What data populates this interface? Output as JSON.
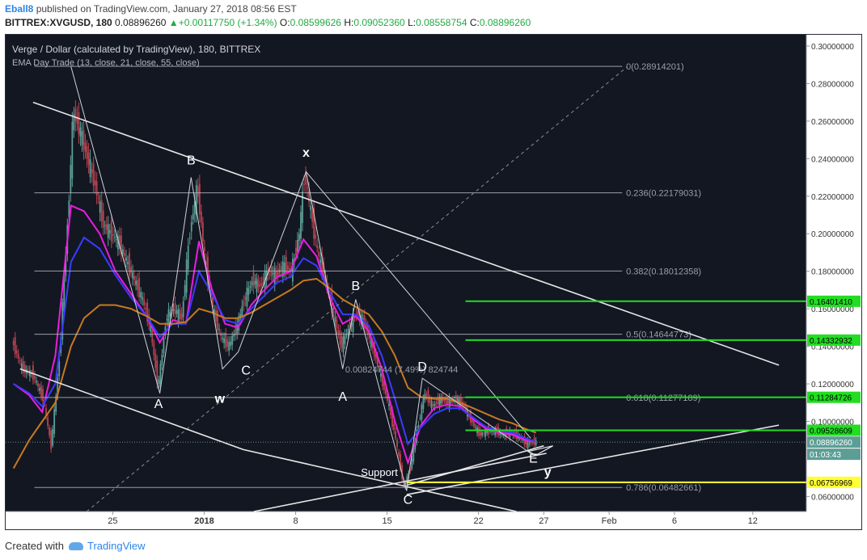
{
  "header": {
    "user": "Eball8",
    "published_text": " published on TradingView.com, January 27, 2018 08:56 EST",
    "symbol": "BITTREX:XVGUSD, 180",
    "last": "0.08896260",
    "change": "+0.00117750 (+1.34%)",
    "ohlc": {
      "o_label": "O:",
      "o": "0.08599626",
      "h_label": "H:",
      "h": "0.09052360",
      "l_label": "L:",
      "l": "0.08558754",
      "c_label": "C:",
      "c": "0.08896260"
    }
  },
  "footer": {
    "created_with": "Created with",
    "brand": "TradingView"
  },
  "colors": {
    "background": "#131722",
    "ema13": "#e91ee0",
    "ema21": "#3b3bff",
    "ema55": "#c8791f",
    "fib": "#b2b5be",
    "level": "#22dd22",
    "support": "#ffff33",
    "candle_up": "#5c9e95",
    "candle_down": "#b8434f",
    "drawing": "#e6e6e6"
  },
  "chart_data": {
    "type": "candlestick",
    "title": "Verge / Dollar (calculated by TradingView), 180, BITTREX",
    "indicator": "EMA Day Trade (13, close, 21, close, 55, close)",
    "timeframe": "180",
    "ylim": [
      0.052,
      0.306
    ],
    "y_ticks": [
      "0.30000000",
      "0.28000000",
      "0.26000000",
      "0.24000000",
      "0.22000000",
      "0.20000000",
      "0.18000000",
      "0.16000000",
      "0.14000000",
      "0.12000000",
      "0.10000000",
      "0.06000000"
    ],
    "x_ticks": [
      {
        "label": "25",
        "day": 25
      },
      {
        "label": "2018",
        "day": 32
      },
      {
        "label": "8",
        "day": 39
      },
      {
        "label": "15",
        "day": 46
      },
      {
        "label": "22",
        "day": 53
      },
      {
        "label": "27",
        "day": 58
      },
      {
        "label": "Feb",
        "day": 63
      },
      {
        "label": "6",
        "day": 68
      },
      {
        "label": "12",
        "day": 74
      }
    ],
    "price_path": [
      [
        17.4,
        0.143
      ],
      [
        18.2,
        0.128
      ],
      [
        19.0,
        0.125
      ],
      [
        19.8,
        0.112
      ],
      [
        20.4,
        0.087
      ],
      [
        21.0,
        0.13
      ],
      [
        21.7,
        0.21
      ],
      [
        22.1,
        0.265
      ],
      [
        22.6,
        0.255
      ],
      [
        23.2,
        0.24
      ],
      [
        23.8,
        0.225
      ],
      [
        24.4,
        0.205
      ],
      [
        25.0,
        0.2
      ],
      [
        25.6,
        0.195
      ],
      [
        26.2,
        0.185
      ],
      [
        26.8,
        0.175
      ],
      [
        27.4,
        0.165
      ],
      [
        28.0,
        0.15
      ],
      [
        28.6,
        0.118
      ],
      [
        29.2,
        0.155
      ],
      [
        29.8,
        0.16
      ],
      [
        30.4,
        0.155
      ],
      [
        31.0,
        0.2
      ],
      [
        31.6,
        0.225
      ],
      [
        32.2,
        0.185
      ],
      [
        32.8,
        0.16
      ],
      [
        33.4,
        0.145
      ],
      [
        34.0,
        0.14
      ],
      [
        34.6,
        0.15
      ],
      [
        35.2,
        0.165
      ],
      [
        35.8,
        0.175
      ],
      [
        36.4,
        0.172
      ],
      [
        37.0,
        0.18
      ],
      [
        37.6,
        0.178
      ],
      [
        38.2,
        0.183
      ],
      [
        38.8,
        0.18
      ],
      [
        39.4,
        0.2
      ],
      [
        39.8,
        0.232
      ],
      [
        40.2,
        0.215
      ],
      [
        40.8,
        0.19
      ],
      [
        41.4,
        0.175
      ],
      [
        42.0,
        0.158
      ],
      [
        42.6,
        0.14
      ],
      [
        43.2,
        0.15
      ],
      [
        43.8,
        0.158
      ],
      [
        44.4,
        0.152
      ],
      [
        45.0,
        0.14
      ],
      [
        45.6,
        0.125
      ],
      [
        46.2,
        0.11
      ],
      [
        46.8,
        0.09
      ],
      [
        47.4,
        0.065
      ],
      [
        47.9,
        0.075
      ],
      [
        48.4,
        0.095
      ],
      [
        49.0,
        0.115
      ],
      [
        49.6,
        0.108
      ],
      [
        50.2,
        0.112
      ],
      [
        50.8,
        0.11
      ],
      [
        51.4,
        0.112
      ],
      [
        52.0,
        0.108
      ],
      [
        52.6,
        0.1
      ],
      [
        53.2,
        0.093
      ],
      [
        53.8,
        0.095
      ],
      [
        54.4,
        0.095
      ],
      [
        55.0,
        0.093
      ],
      [
        55.6,
        0.094
      ],
      [
        56.2,
        0.092
      ],
      [
        56.8,
        0.088
      ],
      [
        57.4,
        0.089
      ]
    ],
    "ema": [
      {
        "name": "EMA 13",
        "color_key": "ema13",
        "points": [
          [
            17.4,
            0.12
          ],
          [
            18.6,
            0.114
          ],
          [
            19.6,
            0.105
          ],
          [
            20.6,
            0.135
          ],
          [
            21.8,
            0.215
          ],
          [
            22.8,
            0.212
          ],
          [
            24.0,
            0.2
          ],
          [
            25.2,
            0.18
          ],
          [
            26.4,
            0.168
          ],
          [
            27.6,
            0.156
          ],
          [
            28.6,
            0.142
          ],
          [
            29.6,
            0.154
          ],
          [
            30.6,
            0.152
          ],
          [
            31.6,
            0.196
          ],
          [
            32.6,
            0.17
          ],
          [
            33.6,
            0.152
          ],
          [
            34.6,
            0.15
          ],
          [
            35.6,
            0.162
          ],
          [
            36.6,
            0.17
          ],
          [
            37.6,
            0.177
          ],
          [
            38.6,
            0.18
          ],
          [
            39.6,
            0.197
          ],
          [
            40.6,
            0.188
          ],
          [
            41.6,
            0.166
          ],
          [
            42.6,
            0.152
          ],
          [
            43.6,
            0.156
          ],
          [
            44.6,
            0.148
          ],
          [
            45.6,
            0.128
          ],
          [
            46.6,
            0.1
          ],
          [
            47.6,
            0.078
          ],
          [
            48.6,
            0.098
          ],
          [
            49.6,
            0.107
          ],
          [
            50.6,
            0.109
          ],
          [
            51.6,
            0.108
          ],
          [
            52.6,
            0.101
          ],
          [
            53.6,
            0.096
          ],
          [
            54.6,
            0.094
          ],
          [
            55.6,
            0.093
          ],
          [
            56.6,
            0.09
          ],
          [
            57.4,
            0.089
          ]
        ]
      },
      {
        "name": "EMA 21",
        "color_key": "ema21",
        "points": [
          [
            17.4,
            0.12
          ],
          [
            18.6,
            0.115
          ],
          [
            19.6,
            0.108
          ],
          [
            20.6,
            0.12
          ],
          [
            21.8,
            0.185
          ],
          [
            22.8,
            0.198
          ],
          [
            24.0,
            0.192
          ],
          [
            25.2,
            0.178
          ],
          [
            26.4,
            0.166
          ],
          [
            27.6,
            0.156
          ],
          [
            28.6,
            0.145
          ],
          [
            29.6,
            0.152
          ],
          [
            30.6,
            0.152
          ],
          [
            31.6,
            0.18
          ],
          [
            32.6,
            0.168
          ],
          [
            33.6,
            0.154
          ],
          [
            34.6,
            0.152
          ],
          [
            35.6,
            0.16
          ],
          [
            36.6,
            0.167
          ],
          [
            37.6,
            0.174
          ],
          [
            38.6,
            0.177
          ],
          [
            39.6,
            0.187
          ],
          [
            40.6,
            0.183
          ],
          [
            41.6,
            0.169
          ],
          [
            42.6,
            0.157
          ],
          [
            43.6,
            0.157
          ],
          [
            44.6,
            0.151
          ],
          [
            45.6,
            0.135
          ],
          [
            46.6,
            0.112
          ],
          [
            47.6,
            0.088
          ],
          [
            48.6,
            0.097
          ],
          [
            49.6,
            0.104
          ],
          [
            50.6,
            0.107
          ],
          [
            51.6,
            0.107
          ],
          [
            52.6,
            0.102
          ],
          [
            53.6,
            0.097
          ],
          [
            54.6,
            0.095
          ],
          [
            55.6,
            0.094
          ],
          [
            56.6,
            0.091
          ],
          [
            57.4,
            0.089
          ]
        ]
      },
      {
        "name": "EMA 55",
        "color_key": "ema55",
        "points": [
          [
            17.4,
            0.075
          ],
          [
            18.6,
            0.09
          ],
          [
            19.6,
            0.1
          ],
          [
            20.6,
            0.11
          ],
          [
            21.8,
            0.14
          ],
          [
            22.8,
            0.155
          ],
          [
            24.0,
            0.162
          ],
          [
            25.2,
            0.162
          ],
          [
            26.4,
            0.16
          ],
          [
            27.6,
            0.156
          ],
          [
            28.6,
            0.152
          ],
          [
            29.6,
            0.152
          ],
          [
            30.6,
            0.153
          ],
          [
            31.6,
            0.16
          ],
          [
            32.6,
            0.158
          ],
          [
            33.6,
            0.155
          ],
          [
            34.6,
            0.155
          ],
          [
            35.6,
            0.158
          ],
          [
            36.6,
            0.162
          ],
          [
            37.6,
            0.166
          ],
          [
            38.6,
            0.17
          ],
          [
            39.6,
            0.175
          ],
          [
            40.6,
            0.176
          ],
          [
            41.6,
            0.171
          ],
          [
            42.6,
            0.165
          ],
          [
            43.6,
            0.161
          ],
          [
            44.6,
            0.157
          ],
          [
            45.6,
            0.148
          ],
          [
            46.6,
            0.135
          ],
          [
            47.6,
            0.118
          ],
          [
            48.6,
            0.113
          ],
          [
            49.6,
            0.112
          ],
          [
            50.6,
            0.112
          ],
          [
            51.6,
            0.11
          ],
          [
            52.6,
            0.107
          ],
          [
            53.6,
            0.104
          ],
          [
            54.6,
            0.101
          ],
          [
            55.6,
            0.099
          ],
          [
            56.6,
            0.096
          ],
          [
            57.4,
            0.094
          ]
        ]
      }
    ],
    "fib_levels": [
      {
        "label": "0(0.28914201)",
        "value": 0.28914201
      },
      {
        "label": "0.236(0.22179031)",
        "value": 0.22179031
      },
      {
        "label": "0.382(0.18012358)",
        "value": 0.18012358
      },
      {
        "label": "0.5(0.14644773)",
        "value": 0.14644773
      },
      {
        "label": "0.618(0.11277189)",
        "value": 0.11277189
      },
      {
        "label": "0.786(0.06482661)",
        "value": 0.06482661
      }
    ],
    "horizontal_levels": [
      {
        "label": "0.16401410",
        "value": 0.1640141,
        "color_key": "level"
      },
      {
        "label": "0.14332932",
        "value": 0.14332932,
        "color_key": "level"
      },
      {
        "label": "0.11284726",
        "value": 0.11284726,
        "color_key": "level"
      },
      {
        "label": "0.09528609",
        "value": 0.09528609,
        "color_key": "level"
      },
      {
        "label": "0.06756969",
        "value": 0.06756969,
        "color_key": "support"
      }
    ],
    "current_price": {
      "label": "0.08896260",
      "value": 0.0889626,
      "countdown": "01:03:43"
    },
    "measure_label": "0.00824744 (7.49%) 824744",
    "wave_labels": [
      {
        "text": "B",
        "day": 31.0,
        "price": 0.237,
        "bold": false
      },
      {
        "text": "x",
        "day": 39.8,
        "price": 0.241,
        "bold": true
      },
      {
        "text": "A",
        "day": 28.5,
        "price": 0.107,
        "bold": false
      },
      {
        "text": "w",
        "day": 33.2,
        "price": 0.11,
        "bold": true
      },
      {
        "text": "C",
        "day": 35.2,
        "price": 0.125,
        "bold": false
      },
      {
        "text": "B",
        "day": 43.6,
        "price": 0.17,
        "bold": false
      },
      {
        "text": "A",
        "day": 42.6,
        "price": 0.111,
        "bold": false
      },
      {
        "text": "D",
        "day": 48.7,
        "price": 0.127,
        "bold": false
      },
      {
        "text": "C",
        "day": 47.6,
        "price": 0.056,
        "bold": false
      },
      {
        "text": "E",
        "day": 57.2,
        "price": 0.078,
        "bold": false
      },
      {
        "text": "y",
        "day": 58.3,
        "price": 0.071,
        "bold": true
      },
      {
        "text": "Support",
        "day": 44.0,
        "price": 0.071,
        "bold": false
      }
    ],
    "trendlines": [
      {
        "from": [
          18.9,
          0.27
        ],
        "to": [
          76.0,
          0.13
        ]
      },
      {
        "from": [
          17.9,
          0.128
        ],
        "to": [
          35.0,
          0.085
        ]
      },
      {
        "from": [
          35.0,
          0.085
        ],
        "to": [
          55.9,
          0.052
        ]
      },
      {
        "from": [
          47.5,
          0.061
        ],
        "to": [
          76.0,
          0.098
        ]
      },
      {
        "from": [
          35.8,
          0.052
        ],
        "to": [
          58.2,
          0.083
        ]
      },
      {
        "from": [
          47.5,
          0.066
        ],
        "to": [
          58.0,
          0.087
        ]
      }
    ],
    "dashed_lines": [
      {
        "from": [
          23.0,
          0.052
        ],
        "to": [
          64.4,
          0.289
        ]
      }
    ],
    "zigzag": [
      [
        21.8,
        0.289
      ],
      [
        28.6,
        0.115
      ],
      [
        31.0,
        0.23
      ],
      [
        33.4,
        0.128
      ],
      [
        34.6,
        0.137
      ],
      [
        39.8,
        0.233
      ],
      [
        42.6,
        0.128
      ],
      [
        43.6,
        0.165
      ],
      [
        47.5,
        0.063
      ],
      [
        48.7,
        0.123
      ],
      [
        57.0,
        0.083
      ]
    ],
    "triangle_E": [
      [
        56.8,
        0.084
      ],
      [
        58.7,
        0.087
      ],
      [
        57.4,
        0.082
      ]
    ],
    "zigzag_ext": [
      [
        39.8,
        0.233
      ],
      [
        57.0,
        0.091
      ]
    ]
  }
}
